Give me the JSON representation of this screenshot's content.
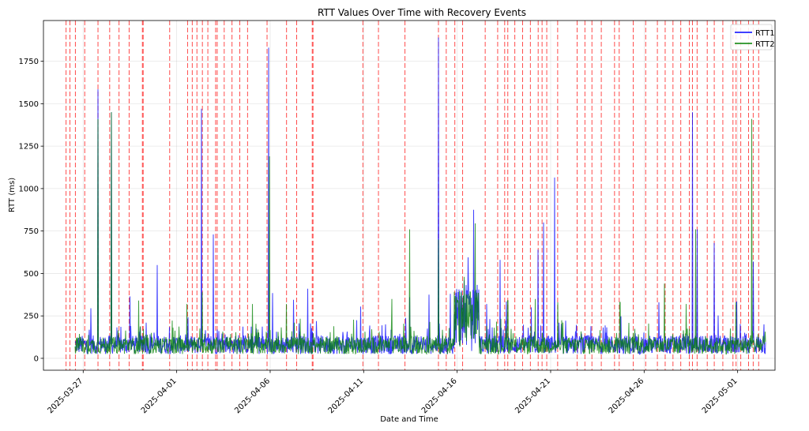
{
  "chart_data": {
    "type": "line",
    "title": "RTT Values Over Time with Recovery Events",
    "xlabel": "Date and Time",
    "ylabel": "RTT (ms)",
    "xlim": [
      "2025-03-24T21:00",
      "2025-05-03T00:00"
    ],
    "ylim": [
      -70,
      1990
    ],
    "x_ticks": [
      "2025-03-27",
      "2025-04-01",
      "2025-04-06",
      "2025-04-11",
      "2025-04-16",
      "2025-04-21",
      "2025-04-26",
      "2025-05-01"
    ],
    "y_ticks": [
      0,
      250,
      500,
      750,
      1000,
      1250,
      1500,
      1750
    ],
    "grid": true,
    "legend": "top-right",
    "series": [
      {
        "name": "RTT1",
        "color": "#0000ff",
        "baseline": 25,
        "spikes": [
          {
            "x": "2025-03-26T05:00",
            "y": 440
          },
          {
            "x": "2025-03-27T10:00",
            "y": 295
          },
          {
            "x": "2025-03-27T19:00",
            "y": 1585
          },
          {
            "x": "2025-03-28T12:00",
            "y": 1450
          },
          {
            "x": "2025-03-29T12:00",
            "y": 365
          },
          {
            "x": "2025-03-30T23:00",
            "y": 550
          },
          {
            "x": "2025-04-02T08:00",
            "y": 1470
          },
          {
            "x": "2025-04-02T23:00",
            "y": 730
          },
          {
            "x": "2025-04-05T22:00",
            "y": 1830
          },
          {
            "x": "2025-04-06T03:00",
            "y": 385
          },
          {
            "x": "2025-04-07T06:00",
            "y": 345
          },
          {
            "x": "2025-04-08T00:00",
            "y": 410
          },
          {
            "x": "2025-04-10T20:00",
            "y": 305
          },
          {
            "x": "2025-04-13T11:00",
            "y": 360
          },
          {
            "x": "2025-04-14T12:00",
            "y": 375
          },
          {
            "x": "2025-04-15T00:00",
            "y": 1890
          },
          {
            "x": "2025-04-15T15:00",
            "y": 380
          },
          {
            "x": "2025-04-16T14:00",
            "y": 595
          },
          {
            "x": "2025-04-16T21:00",
            "y": 875
          },
          {
            "x": "2025-04-17T14:00",
            "y": 320
          },
          {
            "x": "2025-04-18T07:00",
            "y": 580
          },
          {
            "x": "2025-04-18T15:00",
            "y": 335
          },
          {
            "x": "2025-04-19T23:00",
            "y": 300
          },
          {
            "x": "2025-04-20T08:00",
            "y": 640
          },
          {
            "x": "2025-04-20T15:00",
            "y": 800
          },
          {
            "x": "2025-04-21T05:00",
            "y": 1065
          },
          {
            "x": "2025-04-24T18:00",
            "y": 245
          },
          {
            "x": "2025-04-26T19:00",
            "y": 330
          },
          {
            "x": "2025-04-28T14:00",
            "y": 1450
          },
          {
            "x": "2025-04-28T20:00",
            "y": 760
          },
          {
            "x": "2025-04-29T18:00",
            "y": 680
          },
          {
            "x": "2025-04-30T23:00",
            "y": 335
          },
          {
            "x": "2025-05-01T20:00",
            "y": 570
          },
          {
            "x": "2025-05-02T10:00",
            "y": 200
          }
        ]
      },
      {
        "name": "RTT2",
        "color": "#008000",
        "baseline": 25,
        "spikes": [
          {
            "x": "2025-03-26T04:00",
            "y": 330
          },
          {
            "x": "2025-03-27T19:00",
            "y": 1410
          },
          {
            "x": "2025-03-28T12:00",
            "y": 1450
          },
          {
            "x": "2025-03-29T23:00",
            "y": 340
          },
          {
            "x": "2025-04-01T13:00",
            "y": 320
          },
          {
            "x": "2025-04-02T09:00",
            "y": 390
          },
          {
            "x": "2025-04-05T01:00",
            "y": 320
          },
          {
            "x": "2025-04-05T23:00",
            "y": 1190
          },
          {
            "x": "2025-04-06T21:00",
            "y": 320
          },
          {
            "x": "2025-04-12T12:00",
            "y": 350
          },
          {
            "x": "2025-04-13T11:00",
            "y": 760
          },
          {
            "x": "2025-04-15T00:00",
            "y": 700
          },
          {
            "x": "2025-04-16T09:00",
            "y": 480
          },
          {
            "x": "2025-04-16T23:00",
            "y": 795
          },
          {
            "x": "2025-04-18T17:00",
            "y": 340
          },
          {
            "x": "2025-04-20T04:00",
            "y": 350
          },
          {
            "x": "2025-04-21T09:00",
            "y": 330
          },
          {
            "x": "2025-04-24T17:00",
            "y": 330
          },
          {
            "x": "2025-04-27T02:00",
            "y": 440
          },
          {
            "x": "2025-04-28T06:00",
            "y": 320
          },
          {
            "x": "2025-04-28T18:00",
            "y": 760
          },
          {
            "x": "2025-04-30T22:00",
            "y": 330
          },
          {
            "x": "2025-05-01T18:00",
            "y": 1410
          }
        ]
      }
    ],
    "annotations": {
      "style": "recovery-event-line",
      "color": "#ff0000",
      "x": [
        "2025-03-26T02:00",
        "2025-03-26T07:00",
        "2025-03-26T14:00",
        "2025-03-27T02:00",
        "2025-03-27T19:00",
        "2025-03-28T10:00",
        "2025-03-28T22:00",
        "2025-03-29T11:00",
        "2025-03-30T04:00",
        "2025-03-30T05:00",
        "2025-03-31T15:00",
        "2025-04-01T14:00",
        "2025-04-01T20:00",
        "2025-04-02T02:00",
        "2025-04-02T09:00",
        "2025-04-02T16:00",
        "2025-04-03T02:00",
        "2025-04-03T04:00",
        "2025-04-03T13:00",
        "2025-04-03T23:00",
        "2025-04-04T09:00",
        "2025-04-04T19:00",
        "2025-04-05T20:00",
        "2025-04-06T21:00",
        "2025-04-07T10:00",
        "2025-04-08T06:00",
        "2025-04-08T07:00",
        "2025-04-10T23:00",
        "2025-04-11T19:00",
        "2025-04-13T05:00",
        "2025-04-15T00:00",
        "2025-04-15T10:00",
        "2025-04-15T21:00",
        "2025-04-16T07:00",
        "2025-04-17T12:00",
        "2025-04-18T04:00",
        "2025-04-18T13:00",
        "2025-04-18T17:00",
        "2025-04-19T02:00",
        "2025-04-19T12:00",
        "2025-04-19T22:00",
        "2025-04-20T08:00",
        "2025-04-20T13:00",
        "2025-04-20T19:00",
        "2025-04-21T09:00",
        "2025-04-22T10:00",
        "2025-04-22T20:00",
        "2025-04-23T05:00",
        "2025-04-23T17:00",
        "2025-04-24T10:00",
        "2025-04-24T16:00",
        "2025-04-25T10:00",
        "2025-04-26T02:00",
        "2025-04-26T17:00",
        "2025-04-27T03:00",
        "2025-04-27T13:00",
        "2025-04-27T23:00",
        "2025-04-28T10:00",
        "2025-04-28T14:00",
        "2025-04-28T20:00",
        "2025-04-29T09:00",
        "2025-04-29T18:00",
        "2025-04-30T05:00",
        "2025-04-30T18:00",
        "2025-04-30T22:00",
        "2025-05-01T04:00",
        "2025-05-01T14:00",
        "2025-05-01T20:00",
        "2025-05-02T03:00"
      ]
    }
  }
}
